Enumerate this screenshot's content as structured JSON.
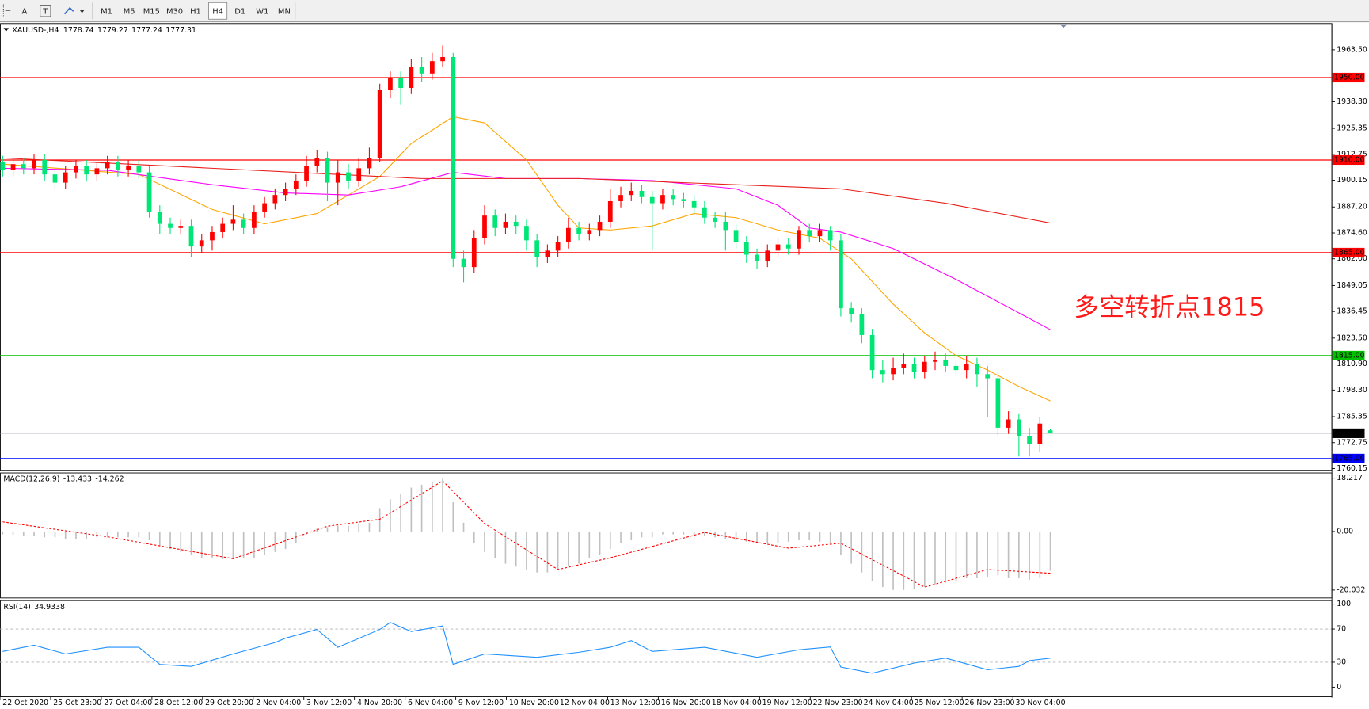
{
  "toolbar": {
    "tools": [
      "A",
      "T"
    ],
    "timeframes": [
      "M1",
      "M5",
      "M15",
      "M30",
      "H1",
      "H4",
      "D1",
      "W1",
      "MN"
    ],
    "active": 5
  },
  "chart_data": [
    {
      "type": "candlestick",
      "symbol": "XAUUSD-,H4",
      "open": [
        1909,
        1905,
        1908,
        1906,
        1910,
        1903,
        1899,
        1904,
        1907,
        1903,
        1906,
        1909,
        1905,
        1907,
        1904,
        1885,
        1879,
        1877,
        1878,
        1868,
        1871,
        1875,
        1879,
        1881,
        1877,
        1885,
        1889,
        1893,
        1896,
        1900,
        1907,
        1911,
        1899,
        1904,
        1900,
        1906,
        1911,
        1944,
        1950,
        1945,
        1955,
        1952,
        1958,
        1960,
        1862,
        1858,
        1872,
        1883,
        1877,
        1880,
        1878,
        1871,
        1863,
        1866,
        1870,
        1877,
        1874,
        1876,
        1880,
        1890,
        1893,
        1895,
        1892,
        1889,
        1893,
        1891,
        1890,
        1887,
        1882,
        1880,
        1876,
        1870,
        1864,
        1861,
        1866,
        1869,
        1867,
        1876,
        1873,
        1876,
        1871,
        1838,
        1835,
        1825,
        1808,
        1806,
        1809,
        1811,
        1807,
        1812,
        1813,
        1810,
        1808,
        1811,
        1806,
        1804,
        1780,
        1784,
        1776,
        1772,
        1778.74
      ],
      "high": [
        1912,
        1911,
        1911,
        1913,
        1913,
        1906,
        1907,
        1910,
        1910,
        1909,
        1912,
        1912,
        1910,
        1910,
        1907,
        1888,
        1882,
        1881,
        1881,
        1874,
        1878,
        1882,
        1888,
        1884,
        1888,
        1892,
        1896,
        1899,
        1903,
        1912,
        1915,
        1914,
        1910,
        1908,
        1911,
        1916,
        1947,
        1953,
        1953,
        1959,
        1960,
        1962,
        1965.6,
        1962,
        1866,
        1876,
        1888,
        1886,
        1884,
        1883,
        1881,
        1874,
        1869,
        1873,
        1882,
        1880,
        1879,
        1883,
        1896,
        1897,
        1899,
        1898,
        1895,
        1896,
        1896,
        1894,
        1893,
        1890,
        1885,
        1885,
        1879,
        1873,
        1867,
        1869,
        1872,
        1872,
        1878,
        1879,
        1879,
        1878,
        1874,
        1841,
        1838,
        1828,
        1813,
        1814,
        1816,
        1814,
        1815,
        1817,
        1816,
        1813,
        1815,
        1814,
        1810,
        1807,
        1788,
        1787,
        1780,
        1785,
        1779.27
      ],
      "low": [
        1902,
        1902,
        1903,
        1903,
        1900,
        1896,
        1896,
        1901,
        1900,
        1900,
        1903,
        1902,
        1902,
        1901,
        1882,
        1874,
        1874,
        1874,
        1863,
        1865,
        1866,
        1872,
        1876,
        1874,
        1874,
        1882,
        1886,
        1890,
        1893,
        1897,
        1904,
        1890,
        1888,
        1896,
        1897,
        1903,
        1909,
        1940,
        1937,
        1942,
        1948,
        1949,
        1955,
        1858,
        1850.6,
        1855,
        1869,
        1873,
        1874,
        1874,
        1866,
        1858,
        1860,
        1863,
        1867,
        1871,
        1871,
        1873,
        1877,
        1887,
        1890,
        1889,
        1866,
        1886,
        1888,
        1887,
        1884,
        1879,
        1877,
        1866,
        1867,
        1860,
        1857,
        1858,
        1863,
        1864,
        1864,
        1870,
        1870,
        1866,
        1834,
        1831,
        1821,
        1804,
        1802,
        1803,
        1806,
        1804,
        1804,
        1808,
        1807,
        1805,
        1804,
        1800,
        1785,
        1776,
        1777,
        1766,
        1766,
        1768,
        1777.24
      ],
      "close": [
        1905,
        1908,
        1906,
        1910,
        1903,
        1899,
        1904,
        1907,
        1903,
        1906,
        1909,
        1905,
        1907,
        1904,
        1885,
        1879,
        1877,
        1878,
        1868,
        1871,
        1875,
        1879,
        1881,
        1877,
        1885,
        1889,
        1893,
        1896,
        1900,
        1907,
        1911,
        1899,
        1904,
        1900,
        1906,
        1911,
        1944,
        1950,
        1945,
        1955,
        1952,
        1958,
        1960,
        1862,
        1858,
        1872,
        1883,
        1877,
        1880,
        1878,
        1871,
        1863,
        1866,
        1870,
        1877,
        1874,
        1876,
        1880,
        1890,
        1893,
        1895,
        1892,
        1889,
        1893,
        1891,
        1890,
        1887,
        1882,
        1880,
        1876,
        1870,
        1864,
        1861,
        1866,
        1869,
        1867,
        1876,
        1873,
        1876,
        1871,
        1838,
        1835,
        1825,
        1808,
        1806,
        1809,
        1811,
        1807,
        1812,
        1813,
        1810,
        1808,
        1811,
        1806,
        1804,
        1780,
        1784,
        1776,
        1772,
        1782,
        1777.31
      ],
      "up_color": "#ff0000",
      "down_color": "#00e676",
      "last_price_color": "#9aa3b0",
      "series": [
        {
          "color": "#ffa500",
          "x": [
            0,
            13,
            20,
            25,
            30,
            33,
            36,
            39,
            43,
            46,
            50,
            53,
            55,
            58,
            62,
            66,
            70,
            74,
            78,
            81,
            85,
            88,
            91,
            94,
            97,
            100
          ],
          "values": [
            1908,
            1903,
            1886,
            1879,
            1884,
            1893,
            1902,
            1918,
            1931,
            1928,
            1910,
            1888,
            1877,
            1876,
            1878,
            1884,
            1882,
            1876,
            1872,
            1862,
            1840,
            1826,
            1815,
            1808,
            1800,
            1793
          ]
        },
        {
          "color": "#ff00ff",
          "x": [
            0,
            10,
            20,
            27,
            33,
            38,
            43,
            48,
            55,
            62,
            70,
            74,
            77,
            80,
            85,
            91,
            100
          ],
          "values": [
            1906,
            1905,
            1898,
            1894,
            1893,
            1897,
            1904,
            1901,
            1901,
            1900,
            1896,
            1888,
            1877,
            1875,
            1867,
            1852,
            1827.6
          ]
        },
        {
          "color": "#e8201a",
          "x": [
            0,
            20,
            40,
            55,
            70,
            80,
            90,
            100
          ],
          "values": [
            1911,
            1906,
            1901,
            1901,
            1898,
            1896,
            1889,
            1879.4
          ]
        }
      ],
      "hlines": [
        {
          "value": 1950,
          "label": "1950.00",
          "color": "#ff0000"
        },
        {
          "value": 1910,
          "label": "1910.00",
          "color": "#ff0000"
        },
        {
          "value": 1865,
          "label": "1865.00",
          "color": "#ff0000"
        },
        {
          "value": 1815,
          "label": "1815.00",
          "color": "#00c000"
        },
        {
          "value": 1765,
          "label": "1765.00",
          "color": "#0000ff"
        }
      ],
      "annotation": {
        "text": "多空转折点1815",
        "color": "#ff1a1a"
      },
      "ylim": [
        1759.3,
        1975.81
      ],
      "yticks": [
        {
          "value": 1963.5,
          "label": "1963.50"
        },
        {
          "value": 1938.3,
          "label": "1938.30"
        },
        1925.35,
        1912.75,
        1900.15,
        {
          "value": 1887.2,
          "label": "1887.20"
        },
        {
          "value": 1874.6,
          "label": "1874.60"
        },
        {
          "value": 1862,
          "label": "1862.00"
        },
        1849.05,
        1836.45,
        {
          "value": 1823.5,
          "label": "1823.50"
        },
        {
          "value": 1810.9,
          "label": "1810.90"
        },
        {
          "value": 1798.3,
          "label": "1798.30"
        },
        1785.35,
        1772.75,
        1760.15
      ],
      "xlim": [
        -0.25,
        126.83
      ],
      "xticks": [
        {
          "value": -0.25,
          "label": "22 Oct 2020"
        },
        {
          "value": 4.58,
          "label": "25 Oct 23:00"
        },
        {
          "value": 9.42,
          "label": "27 Oct 04:00"
        },
        {
          "value": 14.25,
          "label": "28 Oct 12:00"
        },
        {
          "value": 19.08,
          "label": "29 Oct 20:00"
        },
        {
          "value": 23.92,
          "label": "2 Nov 04:00"
        },
        {
          "value": 28.75,
          "label": "3 Nov 12:00"
        },
        {
          "value": 33.58,
          "label": "4 Nov 20:00"
        },
        {
          "value": 38.42,
          "label": "6 Nov 04:00"
        },
        {
          "value": 43.25,
          "label": "9 Nov 12:00"
        },
        {
          "value": 48.08,
          "label": "10 Nov 20:00"
        },
        {
          "value": 52.92,
          "label": "12 Nov 04:00"
        },
        {
          "value": 57.75,
          "label": "13 Nov 12:00"
        },
        {
          "value": 62.58,
          "label": "16 Nov 20:00"
        },
        {
          "value": 67.42,
          "label": "18 Nov 04:00"
        },
        {
          "value": 72.25,
          "label": "19 Nov 12:00"
        },
        {
          "value": 77.08,
          "label": "22 Nov 23:00"
        },
        {
          "value": 81.92,
          "label": "24 Nov 04:00"
        },
        {
          "value": 86.75,
          "label": "25 Nov 12:00"
        },
        {
          "value": 91.58,
          "label": "26 Nov 23:00"
        },
        {
          "value": 96.42,
          "label": "30 Nov 04:00"
        }
      ]
    },
    {
      "type": "bar",
      "title": "MACD(12,26,9)",
      "color": "#c0c0c0",
      "values": [
        -1,
        -1,
        -1.5,
        -1.5,
        -2,
        -2,
        -2.5,
        -2.5,
        -2.5,
        -2,
        -2,
        -2,
        -2,
        -2,
        -3,
        -5,
        -6,
        -7,
        -8,
        -9,
        -9,
        -9.5,
        -9.5,
        -9,
        -9,
        -8,
        -7,
        -6,
        -4,
        -1,
        1,
        1.5,
        2,
        2,
        2.5,
        3,
        8,
        11,
        13,
        15,
        16,
        17,
        18,
        10,
        3,
        -4,
        -7,
        -9,
        -11,
        -12,
        -13,
        -14,
        -14,
        -13,
        -12,
        -11,
        -9,
        -8,
        -6,
        -4,
        -3,
        -2,
        -2,
        -1,
        -1,
        -1,
        -1,
        -1.5,
        -2,
        -2.5,
        -3,
        -3.5,
        -4,
        -4,
        -4,
        -3.5,
        -3,
        -3,
        -3.5,
        -4,
        -8,
        -11,
        -14,
        -17,
        -19,
        -20,
        -20,
        -19.5,
        -19,
        -18,
        -17.5,
        -17,
        -16,
        -16,
        -15.5,
        -15,
        -16,
        -16,
        -16.5,
        -16,
        -13.433
      ],
      "series": [
        {
          "color": "#ff0000",
          "dash": true,
          "x": [
            0,
            10,
            22,
            31,
            36,
            42,
            46,
            53,
            58,
            67,
            75,
            80,
            88,
            94,
            100
          ],
          "values": [
            3.3,
            -1.8,
            -9.3,
            1.8,
            4.2,
            17.3,
            2.7,
            -13,
            -9,
            -0.3,
            -5.7,
            -4,
            -19,
            -13,
            -14.262
          ]
        }
      ],
      "ylim": [
        -22.72,
        19.71
      ],
      "yticks": [
        18.217,
        {
          "value": 0,
          "label": "0.00"
        },
        -20.032
      ]
    },
    {
      "type": "line",
      "title": "RSI(14)",
      "series": [
        {
          "color": "#1e90ff",
          "x": [
            0,
            3,
            6,
            10,
            13,
            15,
            18,
            22,
            26,
            27,
            30,
            32,
            36,
            37,
            39,
            42,
            43,
            46,
            51,
            55,
            58,
            60,
            62,
            67,
            72,
            76,
            79,
            80,
            83,
            87,
            90,
            94,
            97,
            98,
            100
          ],
          "values": [
            43,
            50.5,
            40,
            48,
            48,
            27.4,
            25,
            40,
            53.7,
            59,
            69.5,
            48,
            69.5,
            77.9,
            67,
            73.7,
            27.4,
            40,
            36,
            42,
            48,
            56,
            43,
            48,
            36,
            45,
            48.4,
            24.2,
            16.8,
            29,
            35,
            21,
            25,
            32,
            34.9338
          ]
        }
      ],
      "grid": "dashed",
      "ylim": [
        -11.6,
        103.2
      ],
      "yticks": [
        100,
        70,
        30,
        0
      ]
    }
  ]
}
